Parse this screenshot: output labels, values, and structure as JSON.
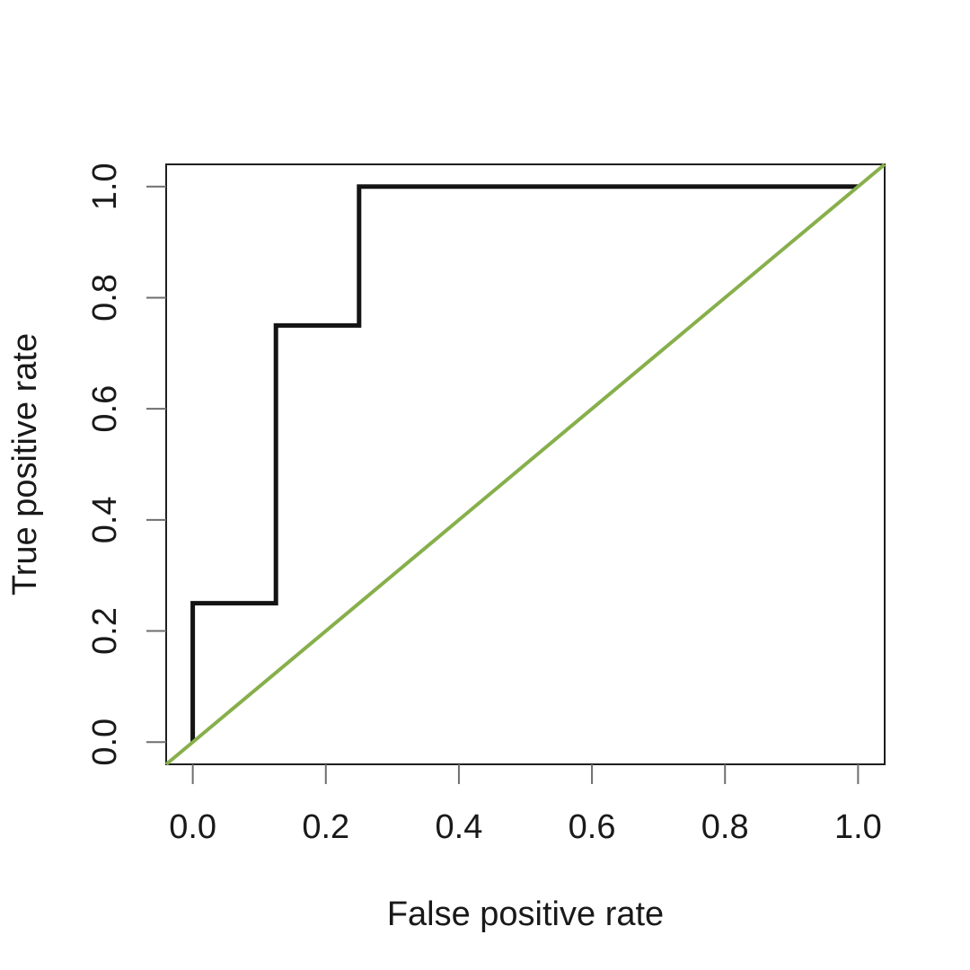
{
  "chart_data": {
    "type": "line",
    "title": "",
    "xlabel": "False positive rate",
    "ylabel": "True positive rate",
    "xlim": [
      -0.04,
      1.04
    ],
    "ylim": [
      -0.04,
      1.04
    ],
    "x_ticks": [
      0.0,
      0.2,
      0.4,
      0.6,
      0.8,
      1.0
    ],
    "y_ticks": [
      0.0,
      0.2,
      0.4,
      0.6,
      0.8,
      1.0
    ],
    "x_tick_labels": [
      "0.0",
      "0.2",
      "0.4",
      "0.6",
      "0.8",
      "1.0"
    ],
    "y_tick_labels": [
      "0.0",
      "0.2",
      "0.4",
      "0.6",
      "0.8",
      "1.0"
    ],
    "grid": false,
    "legend": null,
    "background": "#ffffff",
    "box_color": "#1f1f1f",
    "tick_color": "#6e6e6e",
    "series": [
      {
        "name": "roc-step-curve",
        "type": "step",
        "color": "#141414",
        "width": 5,
        "points": [
          [
            0,
            0
          ],
          [
            0,
            0.25
          ],
          [
            0.125,
            0.25
          ],
          [
            0.125,
            0.75
          ],
          [
            0.25,
            0.75
          ],
          [
            0.25,
            1.0
          ],
          [
            1.0,
            1.0
          ]
        ]
      },
      {
        "name": "chance-diagonal-line",
        "type": "line",
        "color": "#87AF4B",
        "width": 4,
        "points": [
          [
            -0.04,
            -0.04
          ],
          [
            1.04,
            1.04
          ]
        ]
      }
    ]
  }
}
